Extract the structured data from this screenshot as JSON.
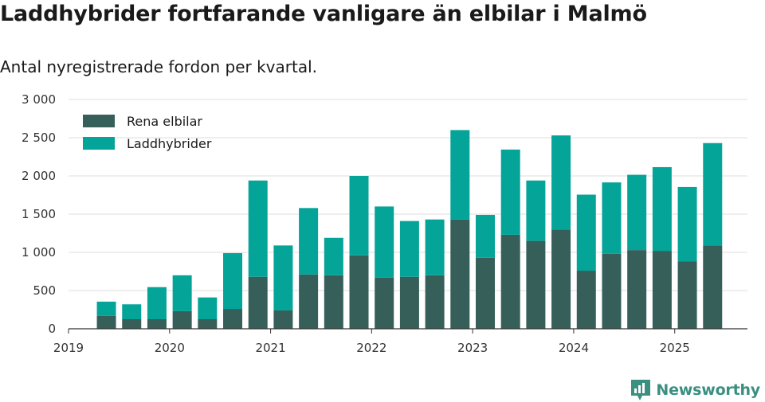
{
  "header": {
    "title": "Laddhybrider fortfarande vanligare än elbilar i Malmö",
    "subtitle": "Antal nyregistrerade fordon per kvartal."
  },
  "brand": {
    "name": "Newsworthy",
    "icon": "newsworthy-logo-icon",
    "color": "#3a8f80"
  },
  "chart_data": {
    "type": "bar",
    "stacked": true,
    "x_unit": "quarter",
    "categories": [
      "2019 Q2",
      "2019 Q3",
      "2019 Q4",
      "2020 Q1",
      "2020 Q2",
      "2020 Q3",
      "2020 Q4",
      "2021 Q1",
      "2021 Q2",
      "2021 Q3",
      "2021 Q4",
      "2022 Q1",
      "2022 Q2",
      "2022 Q3",
      "2022 Q4",
      "2023 Q1",
      "2023 Q2",
      "2023 Q3",
      "2023 Q4",
      "2024 Q1",
      "2024 Q2",
      "2024 Q3",
      "2024 Q4",
      "2025 Q1",
      "2025 Q2"
    ],
    "series": [
      {
        "name": "Rena elbilar",
        "color": "#365f5a",
        "values": [
          170,
          125,
          125,
          230,
          125,
          260,
          680,
          240,
          710,
          700,
          960,
          670,
          680,
          700,
          1430,
          930,
          1230,
          1150,
          1300,
          760,
          980,
          1030,
          1020,
          880,
          1090
        ]
      },
      {
        "name": "Laddhybrider",
        "color": "#05a499",
        "values": [
          185,
          195,
          420,
          470,
          285,
          730,
          1260,
          850,
          870,
          490,
          1040,
          930,
          730,
          730,
          1170,
          560,
          1115,
          790,
          1230,
          995,
          935,
          985,
          1095,
          975,
          1340
        ]
      }
    ],
    "y_ticks": [
      "0",
      "500",
      "1 000",
      "1 500",
      "2 000",
      "2 500",
      "3 000"
    ],
    "y_tick_values": [
      0,
      500,
      1000,
      1500,
      2000,
      2500,
      3000
    ],
    "x_ticks": [
      "2019",
      "2020",
      "2021",
      "2022",
      "2023",
      "2024",
      "2025"
    ],
    "ylim": [
      0,
      3000
    ],
    "xlabel": "",
    "ylabel": "",
    "grid": true,
    "legend_position": "top-left"
  }
}
